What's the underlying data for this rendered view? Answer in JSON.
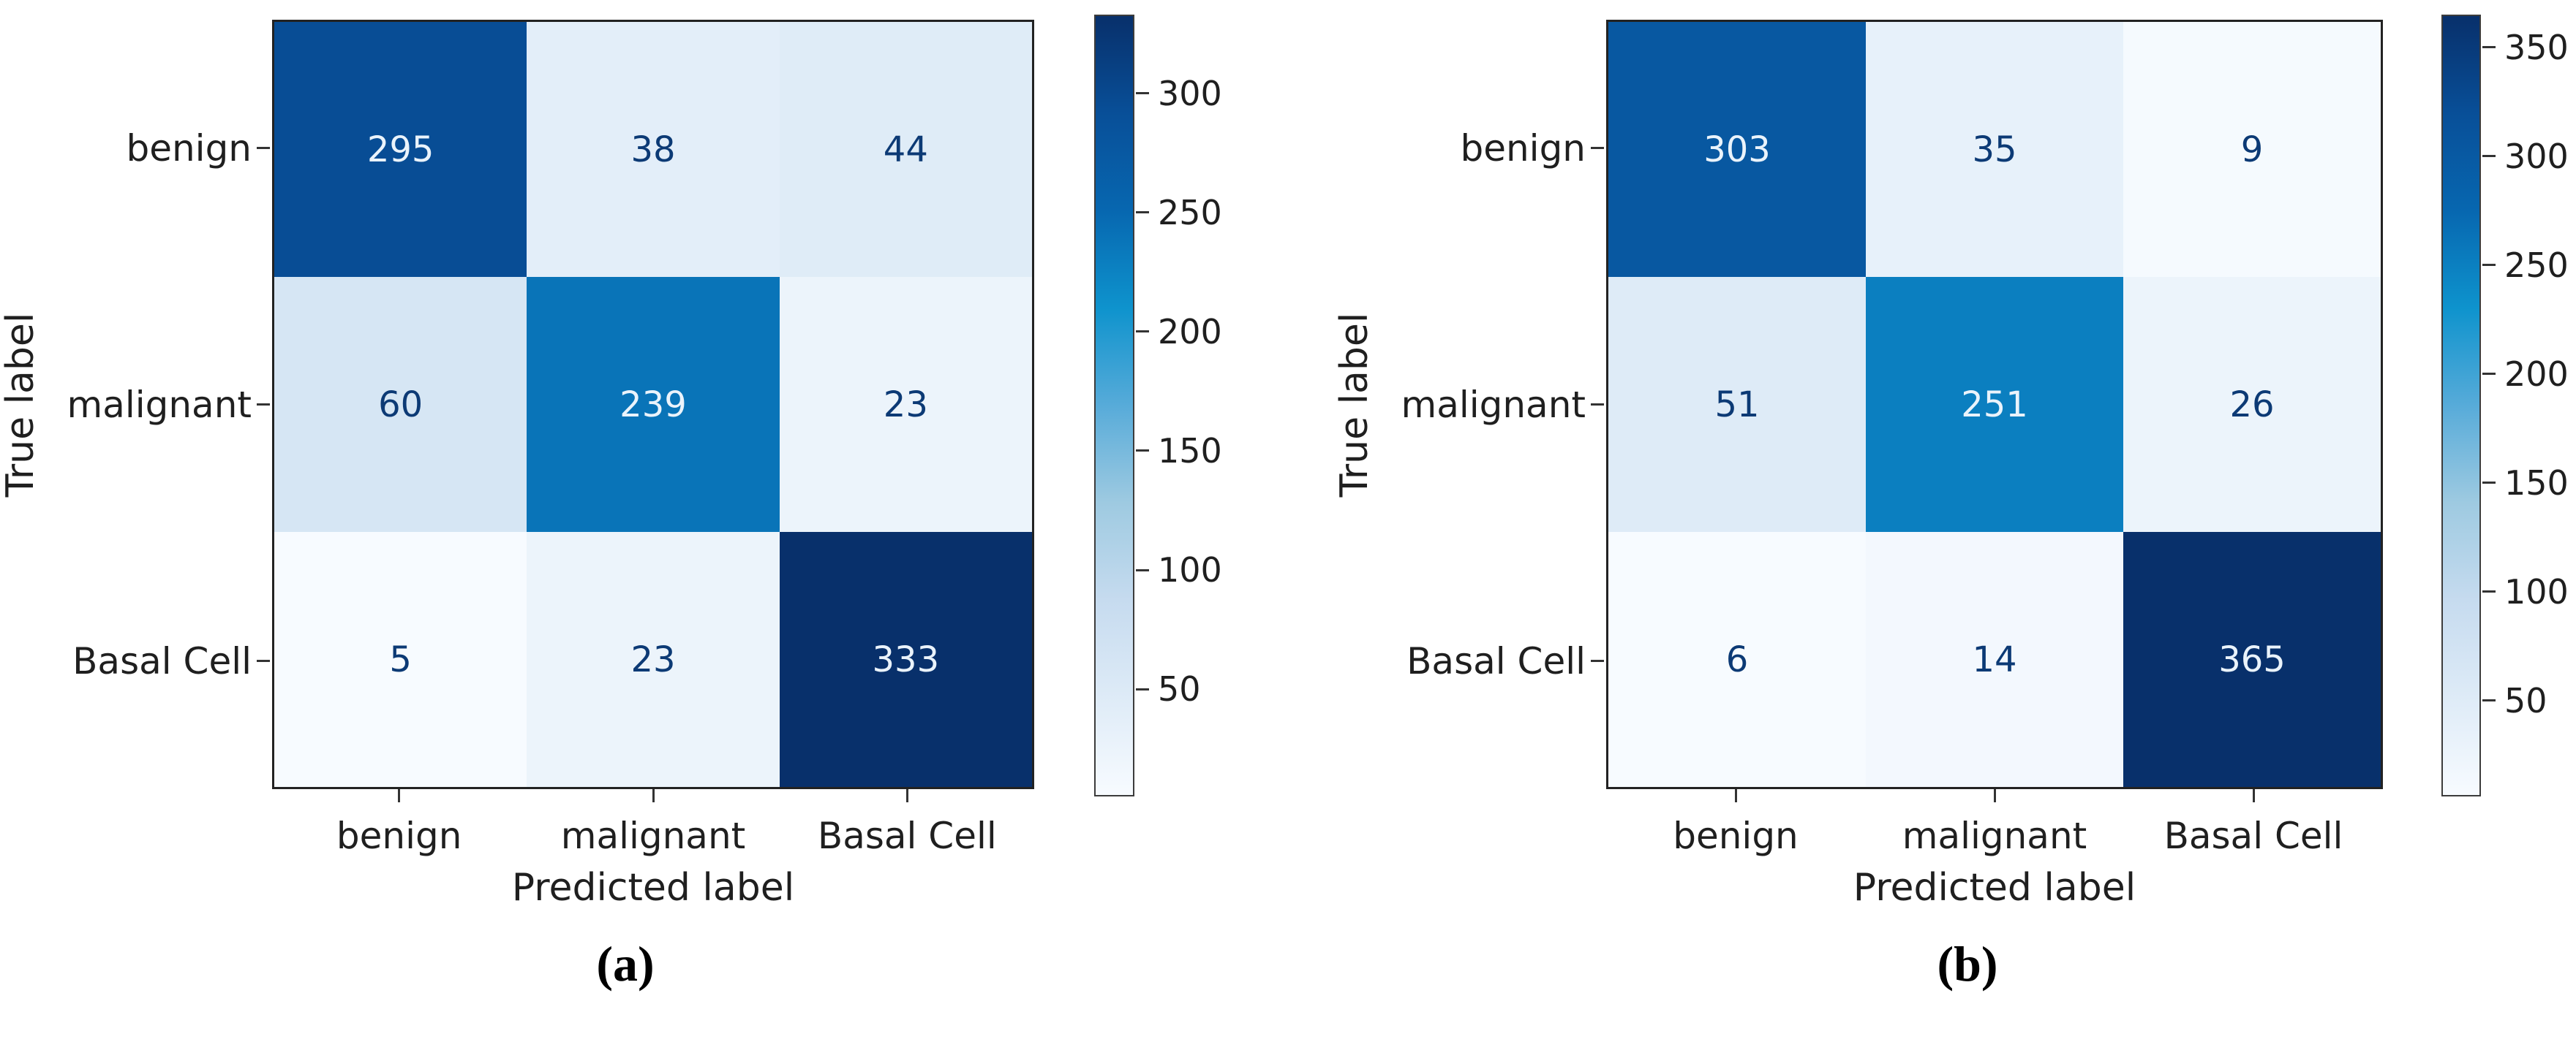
{
  "figure": {
    "background": "#ffffff",
    "description": "Two confusion matrix heatmaps side by side with colorbars"
  },
  "chart_data": [
    {
      "type": "heatmap",
      "caption": "(a)",
      "xlabel": "Predicted label",
      "ylabel": "True label",
      "categories": [
        "benign",
        "malignant",
        "Basal Cell"
      ],
      "matrix": [
        [
          295,
          38,
          44
        ],
        [
          60,
          239,
          23
        ],
        [
          5,
          23,
          333
        ]
      ],
      "vmin": 5,
      "vmax": 333,
      "colorbar_ticks": [
        50,
        100,
        150,
        200,
        250,
        300
      ],
      "colormap": "Blues",
      "legend_position": "right-colorbar",
      "grid": false
    },
    {
      "type": "heatmap",
      "caption": "(b)",
      "xlabel": "Predicted label",
      "ylabel": "True label",
      "categories": [
        "benign",
        "malignant",
        "Basal Cell"
      ],
      "matrix": [
        [
          303,
          35,
          9
        ],
        [
          51,
          251,
          26
        ],
        [
          6,
          14,
          365
        ]
      ],
      "vmin": 6,
      "vmax": 365,
      "colorbar_ticks": [
        50,
        100,
        150,
        200,
        250,
        300,
        350
      ],
      "colormap": "Blues",
      "legend_position": "right-colorbar",
      "grid": false
    }
  ],
  "colors": {
    "annotation_light": "#eaf3fb",
    "annotation_dark": "#0c3a75",
    "spine": "#222222",
    "tick": "#333333",
    "label_text": "#1f1f1f",
    "colormap_stops": [
      [
        0.0,
        "#f7fbff"
      ],
      [
        0.125,
        "#deebf7"
      ],
      [
        0.25,
        "#c6dbef"
      ],
      [
        0.375,
        "#9ecae1"
      ],
      [
        0.5,
        "#57abd9"
      ],
      [
        0.625,
        "#0e93cd"
      ],
      [
        0.75,
        "#0767b0"
      ],
      [
        0.875,
        "#084f98"
      ],
      [
        1.0,
        "#08306b"
      ]
    ]
  }
}
